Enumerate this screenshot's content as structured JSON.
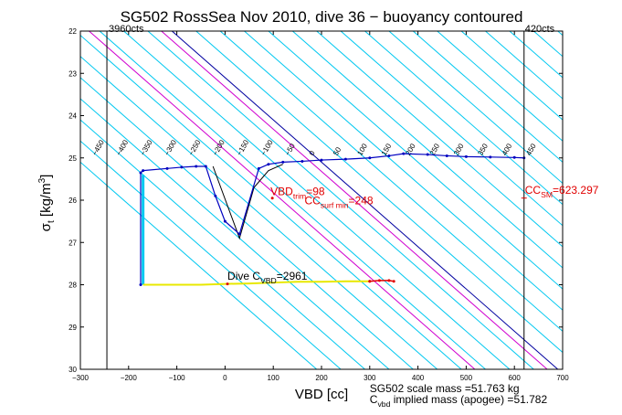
{
  "chart_data": {
    "type": "line",
    "title": "SG502 RossSea Nov 2010, dive 36 − buoyancy contoured",
    "xlabel": "VBD [cc]",
    "ylabel": "σt [kg/m³]",
    "xlim": [
      -300,
      700
    ],
    "ylim": [
      22,
      30
    ],
    "y_reversed": true,
    "x_ticks": [
      -300,
      -200,
      -100,
      0,
      100,
      200,
      300,
      400,
      500,
      600,
      700
    ],
    "y_ticks": [
      22,
      23,
      24,
      25,
      26,
      27,
      28,
      29,
      30
    ],
    "vlines": [
      {
        "x": -245,
        "label": "3960cts"
      },
      {
        "x": 620,
        "label": "420cts"
      }
    ],
    "contours": [
      {
        "value": -500,
        "x_at_top": -610
      },
      {
        "value": -450,
        "x_at_top": -560
      },
      {
        "value": -400,
        "x_at_top": -510
      },
      {
        "value": -350,
        "x_at_top": -460
      },
      {
        "value": -300,
        "x_at_top": -410
      },
      {
        "value": -250,
        "x_at_top": -360
      },
      {
        "value": -200,
        "x_at_top": -310
      },
      {
        "value": -150,
        "x_at_top": -260
      },
      {
        "value": -100,
        "x_at_top": -210
      },
      {
        "value": -50,
        "x_at_top": -160
      },
      {
        "value": 0,
        "x_at_top": -110
      },
      {
        "value": 50,
        "x_at_top": -60
      },
      {
        "value": 100,
        "x_at_top": -10
      },
      {
        "value": 150,
        "x_at_top": 40
      },
      {
        "value": 200,
        "x_at_top": 90
      },
      {
        "value": 250,
        "x_at_top": 140
      },
      {
        "value": 300,
        "x_at_top": 190
      },
      {
        "value": 350,
        "x_at_top": 240
      },
      {
        "value": 400,
        "x_at_top": 290
      },
      {
        "value": 450,
        "x_at_top": 340
      },
      {
        "value": 500,
        "x_at_top": 390
      },
      {
        "value": 550,
        "x_at_top": 440
      },
      {
        "value": 600,
        "x_at_top": 490
      },
      {
        "value": 650,
        "x_at_top": 540
      },
      {
        "value": 700,
        "x_at_top": 590
      },
      {
        "value": 750,
        "x_at_top": 640
      },
      {
        "value": 800,
        "x_at_top": 690
      }
    ],
    "contour_slope_cc_per_sigma": 100,
    "highlight_contours": [
      98,
      248
    ],
    "labels": {
      "vbd_trim": "VBD",
      "vbd_trim_sub": "trim",
      "vbd_trim_value": "=98",
      "cc_surf_min": "CC",
      "cc_surf_min_sub": "surf min",
      "cc_surf_min_value": "=248",
      "cc_sm": "CC",
      "cc_sm_sub": "SM",
      "cc_sm_value": "=623.297",
      "dive_c": "Dive C",
      "dive_c_sub": "VBD",
      "dive_c_value": "=2961",
      "scale_mass": "SG502 scale mass =51.763 kg",
      "implied_mass_c": "C",
      "implied_mass_sub": "vbd",
      "implied_mass_rest": "implied mass (apogee) =51.782"
    },
    "profile_blue": {
      "name": "",
      "x": [
        -175,
        -175,
        -170,
        -120,
        -90,
        -60,
        -40,
        -20,
        0,
        30,
        70,
        90,
        120,
        160,
        200,
        250,
        300,
        340,
        370,
        420,
        460,
        500,
        550,
        600,
        620
      ],
      "y": [
        28.0,
        25.35,
        25.3,
        25.25,
        25.22,
        25.2,
        25.2,
        25.9,
        26.5,
        26.8,
        25.25,
        25.15,
        25.1,
        25.08,
        25.05,
        25.03,
        25.0,
        24.95,
        24.9,
        24.92,
        24.95,
        24.97,
        24.98,
        24.99,
        25.0
      ]
    },
    "profile_black": {
      "x": [
        -25,
        30,
        60,
        90,
        120
      ],
      "y": [
        25.2,
        26.9,
        25.7,
        25.3,
        25.15
      ]
    },
    "bar_cyan": {
      "x": [
        -170,
        -170
      ],
      "y": [
        25.4,
        28.0
      ]
    },
    "line_yellow": {
      "x": [
        -170,
        -100,
        -50,
        0,
        50,
        100,
        150,
        200,
        250,
        300
      ],
      "y": [
        28.0,
        28.0,
        28.0,
        27.98,
        27.97,
        27.95,
        27.93,
        27.93,
        27.92,
        27.92
      ]
    },
    "line_red": {
      "x": [
        300,
        320,
        340,
        350
      ],
      "y": [
        27.92,
        27.9,
        27.9,
        27.92
      ]
    },
    "markers_red": {
      "x": [
        5,
        98,
        300
      ],
      "y": [
        27.98,
        25.95,
        27.92
      ]
    }
  }
}
